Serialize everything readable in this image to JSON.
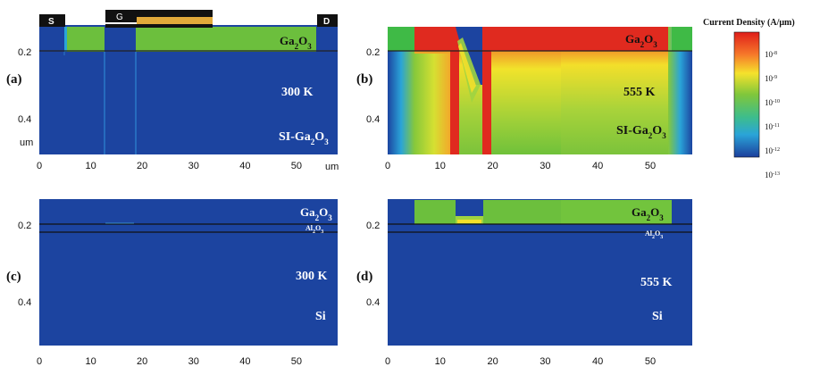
{
  "panels": [
    {
      "id": "a",
      "label": "(a)",
      "temperature": "300 K",
      "layer": "Ga2O3",
      "substrate": "SI-Ga2O3",
      "has_al2o3": false
    },
    {
      "id": "b",
      "label": "(b)",
      "temperature": "555 K",
      "layer": "Ga2O3",
      "substrate": "SI-Ga2O3",
      "has_al2o3": false
    },
    {
      "id": "c",
      "label": "(c)",
      "temperature": "300 K",
      "layer": "Ga2O3",
      "substrate": "Si",
      "has_al2o3": true
    },
    {
      "id": "d",
      "label": "(d)",
      "temperature": "555 K",
      "layer": "Ga2O3",
      "substrate": "Si",
      "has_al2o3": true
    }
  ],
  "x_axis": {
    "ticks": [
      0,
      10,
      20,
      30,
      40,
      50
    ],
    "unit": "um",
    "range": [
      0,
      58
    ]
  },
  "y_axis": {
    "ticks": [
      0.2,
      0.4
    ],
    "unit": "um"
  },
  "contacts": {
    "source": "S",
    "gate": "G",
    "drain": "D"
  },
  "colorbar": {
    "title": "Current Density (A/μm)",
    "tick_mantissa": [
      "10",
      "10",
      "10",
      "10",
      "10",
      "10"
    ],
    "tick_exponents": [
      "-8",
      "-9",
      "-10",
      "-11",
      "-12",
      "-13"
    ],
    "colors": {
      "high": "#e02a1f",
      "mid_high": "#f6ec2a",
      "mid": "#79c63a",
      "mid_low": "#2aa4d8",
      "low": "#1c44a0"
    }
  }
}
